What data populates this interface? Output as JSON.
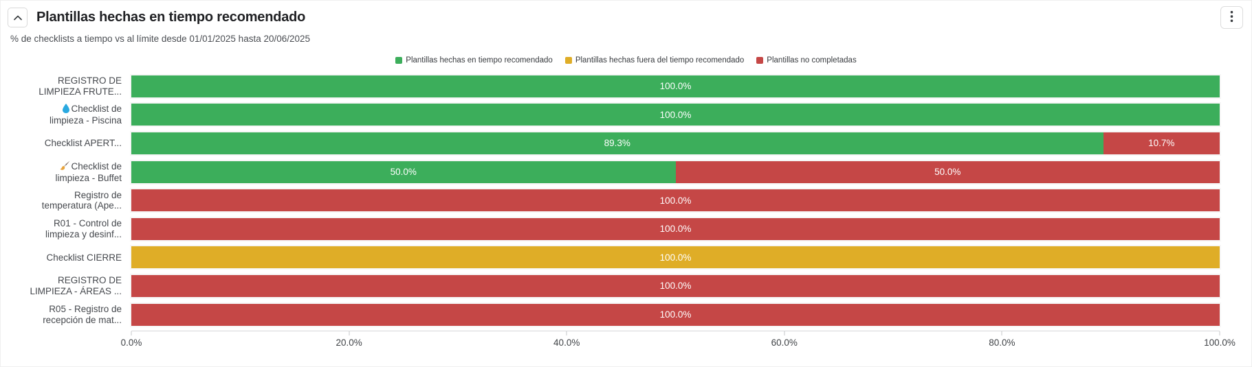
{
  "header": {
    "title": "Plantillas hechas en tiempo recomendado",
    "subtitle": "% de checklists a tiempo vs al límite desde 01/01/2025 hasta 20/06/2025",
    "collapse_icon": "chevron-up-icon",
    "menu_icon": "kebab-menu-icon"
  },
  "colors": {
    "green": "#3cae5b",
    "yellow": "#dfad27",
    "red": "#c54746",
    "axis_text": "#3f4246",
    "category_text": "#45484d",
    "value_text": "#ffffff"
  },
  "legend": {
    "items": [
      {
        "label": "Plantillas hechas en tiempo recomendado",
        "color": "#3cae5b"
      },
      {
        "label": "Plantillas hechas fuera del tiempo recomendado",
        "color": "#dfad27"
      },
      {
        "label": "Plantillas no completadas",
        "color": "#c54746"
      }
    ]
  },
  "chart_data": {
    "type": "bar",
    "orientation": "horizontal",
    "stacked": true,
    "xlim": [
      0,
      100
    ],
    "x_tick_labels": [
      "0.0%",
      "20.0%",
      "40.0%",
      "60.0%",
      "80.0%",
      "100.0%"
    ],
    "series_names": [
      "Plantillas hechas en tiempo recomendado",
      "Plantillas hechas fuera del tiempo recomendado",
      "Plantillas no completadas"
    ],
    "rows": [
      {
        "category_lines": [
          "REGISTRO DE",
          "LIMPIEZA FRUTE..."
        ],
        "icon": null,
        "segments": [
          {
            "series": "Plantillas hechas en tiempo recomendado",
            "value": 100.0,
            "label": "100.0%",
            "color": "#3cae5b"
          }
        ]
      },
      {
        "category_lines": [
          "Checklist de",
          "limpieza - Piscina"
        ],
        "icon": "droplet",
        "segments": [
          {
            "series": "Plantillas hechas en tiempo recomendado",
            "value": 100.0,
            "label": "100.0%",
            "color": "#3cae5b"
          }
        ]
      },
      {
        "category_lines": [
          "Checklist APERT..."
        ],
        "icon": null,
        "segments": [
          {
            "series": "Plantillas hechas en tiempo recomendado",
            "value": 89.3,
            "label": "89.3%",
            "color": "#3cae5b"
          },
          {
            "series": "Plantillas no completadas",
            "value": 10.7,
            "label": "10.7%",
            "color": "#c54746"
          }
        ]
      },
      {
        "category_lines": [
          "Checklist de",
          "limpieza - Buffet"
        ],
        "icon": "brush",
        "segments": [
          {
            "series": "Plantillas hechas en tiempo recomendado",
            "value": 50.0,
            "label": "50.0%",
            "color": "#3cae5b"
          },
          {
            "series": "Plantillas no completadas",
            "value": 50.0,
            "label": "50.0%",
            "color": "#c54746"
          }
        ]
      },
      {
        "category_lines": [
          "Registro de",
          "temperatura (Ape..."
        ],
        "icon": null,
        "segments": [
          {
            "series": "Plantillas no completadas",
            "value": 100.0,
            "label": "100.0%",
            "color": "#c54746"
          }
        ]
      },
      {
        "category_lines": [
          "R01 - Control de",
          "limpieza y desinf..."
        ],
        "icon": null,
        "segments": [
          {
            "series": "Plantillas no completadas",
            "value": 100.0,
            "label": "100.0%",
            "color": "#c54746"
          }
        ]
      },
      {
        "category_lines": [
          "Checklist CIERRE"
        ],
        "icon": null,
        "segments": [
          {
            "series": "Plantillas hechas fuera del tiempo recomendado",
            "value": 100.0,
            "label": "100.0%",
            "color": "#dfad27"
          }
        ]
      },
      {
        "category_lines": [
          "REGISTRO DE",
          "LIMPIEZA - ÁREAS ..."
        ],
        "icon": null,
        "segments": [
          {
            "series": "Plantillas no completadas",
            "value": 100.0,
            "label": "100.0%",
            "color": "#c54746"
          }
        ]
      },
      {
        "category_lines": [
          "R05 - Registro de",
          "recepción de mat..."
        ],
        "icon": null,
        "segments": [
          {
            "series": "Plantillas no completadas",
            "value": 100.0,
            "label": "100.0%",
            "color": "#c54746"
          }
        ]
      }
    ]
  }
}
